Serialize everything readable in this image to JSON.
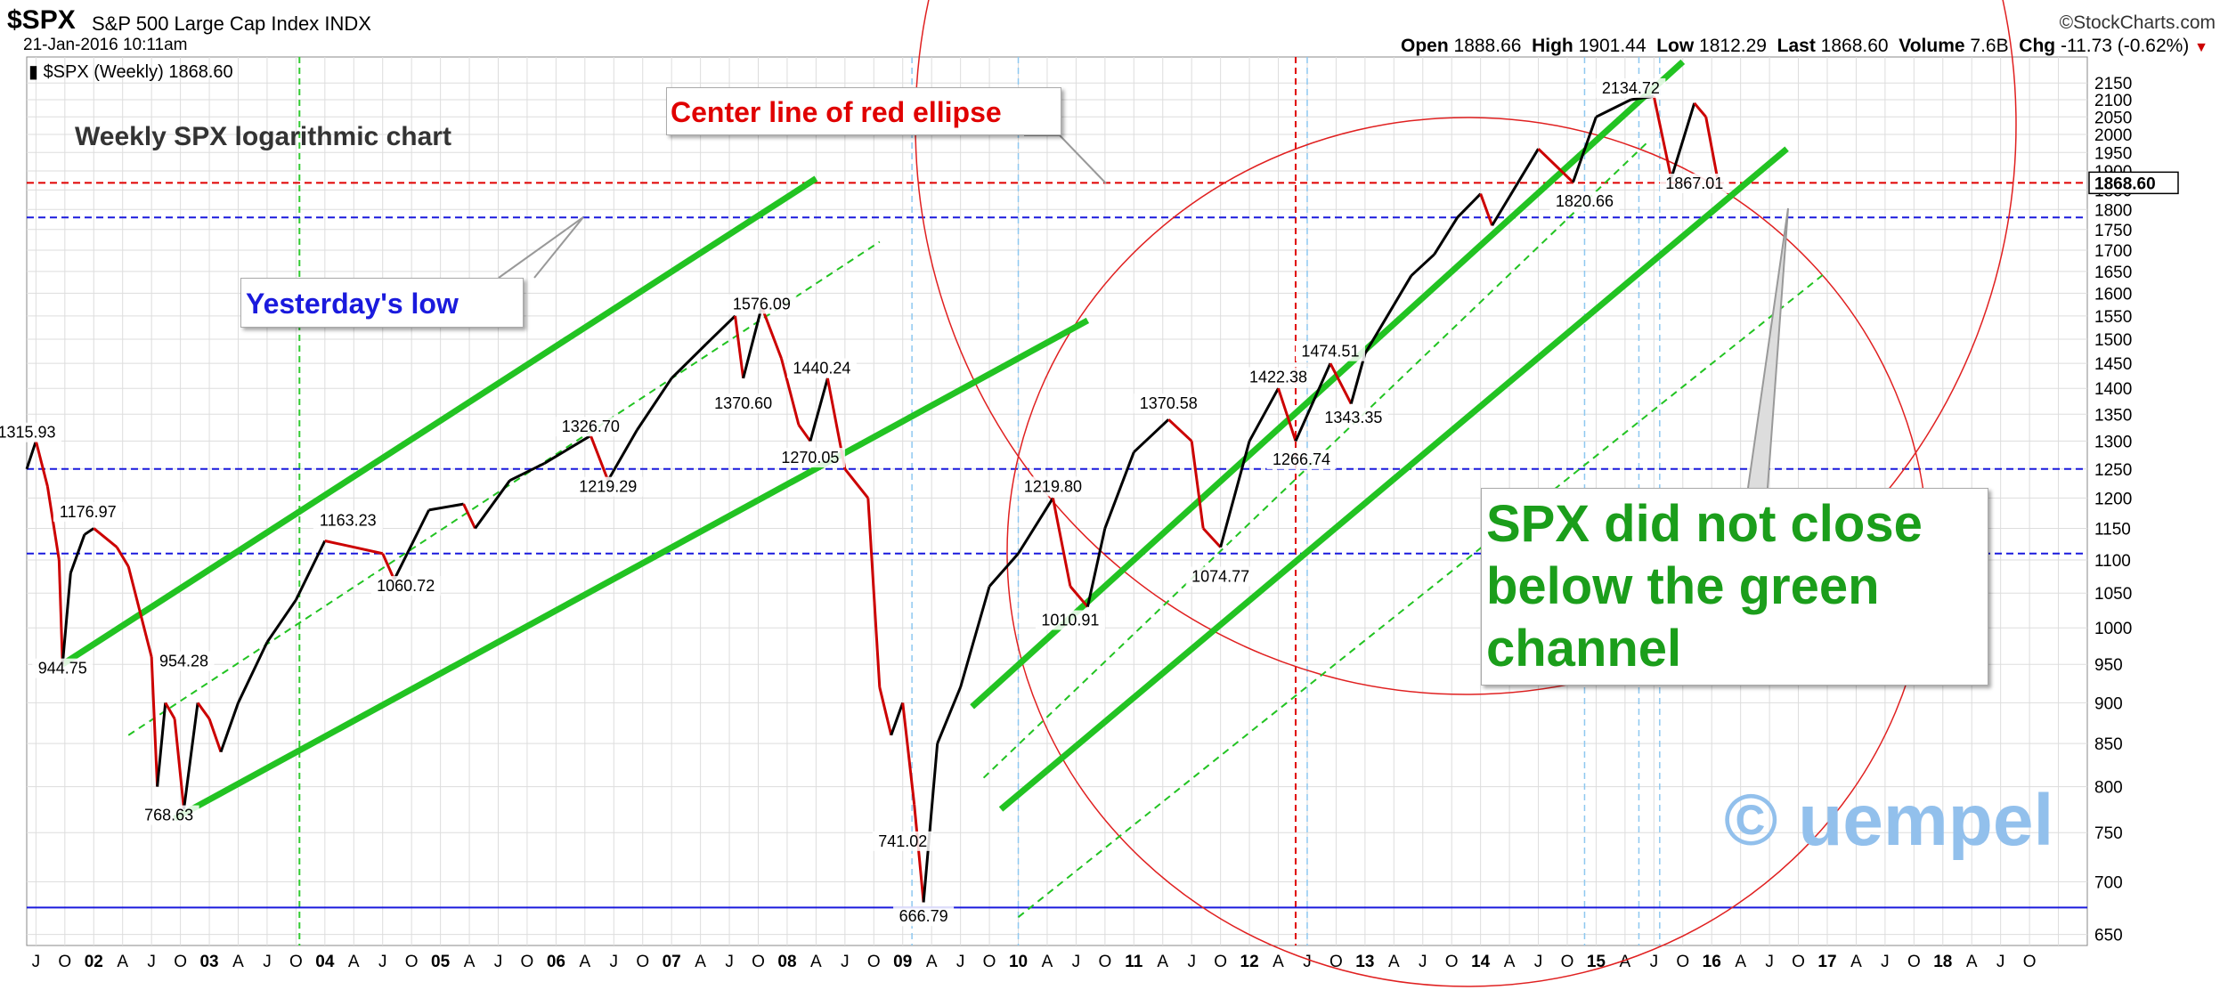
{
  "header": {
    "symbol": "$SPX",
    "name": "S&P 500 Large Cap Index",
    "exchange": "INDX",
    "date": "21-Jan-2016 10:11am",
    "source": "©StockCharts.com",
    "quote": {
      "open_label": "Open",
      "open": "1888.66",
      "high_label": "High",
      "high": "1901.44",
      "low_label": "Low",
      "low": "1812.29",
      "last_label": "Last",
      "last": "1868.60",
      "volume_label": "Volume",
      "volume": "7.6B",
      "chg_label": "Chg",
      "chg": "-11.73 (-0.62%)",
      "chg_arrow": "▼"
    }
  },
  "legend": "$SPX (Weekly) 1868.60",
  "title_note": "Weekly SPX logarithmic chart",
  "notes": {
    "ellipse": "Center line of red ellipse",
    "yesterday": "Yesterday's low",
    "spx_line1": "SPX did not close",
    "spx_line2": "below the green",
    "spx_line3": "channel"
  },
  "watermark": "© uempel",
  "colors": {
    "up": "#000000",
    "down": "#cc0000",
    "channel": "#22c322",
    "ellipse": "#e02020",
    "hline_red": "#e00000",
    "hline_blue": "#1a1add",
    "grid": "#dddddd"
  },
  "chart_data": {
    "type": "line",
    "scale": "log",
    "ylim": [
      640,
      2230
    ],
    "yticks": [
      650,
      700,
      750,
      800,
      850,
      900,
      950,
      1000,
      1050,
      1100,
      1150,
      1200,
      1250,
      1300,
      1350,
      1400,
      1450,
      1500,
      1550,
      1600,
      1650,
      1700,
      1750,
      1800,
      1850,
      1900,
      1950,
      2000,
      2050,
      2100,
      2150
    ],
    "xlim": [
      2001.42,
      2019.25
    ],
    "x_years": [
      "02",
      "03",
      "04",
      "05",
      "06",
      "07",
      "08",
      "09",
      "10",
      "11",
      "12",
      "13",
      "14",
      "15",
      "16",
      "17",
      "18"
    ],
    "x_month_letters": [
      "A",
      "J",
      "O"
    ],
    "last_value_tag": "1868.60",
    "series": [
      {
        "points": [
          [
            2001.42,
            1250
          ],
          [
            2001.5,
            1300
          ],
          [
            2001.6,
            1220
          ],
          [
            2001.7,
            1100
          ],
          [
            2001.73,
            950
          ],
          [
            2001.8,
            1080
          ],
          [
            2001.92,
            1140
          ],
          [
            2002.0,
            1150
          ],
          [
            2002.2,
            1120
          ],
          [
            2002.3,
            1090
          ],
          [
            2002.5,
            960
          ],
          [
            2002.55,
            800
          ],
          [
            2002.62,
            900
          ],
          [
            2002.7,
            880
          ],
          [
            2002.78,
            775
          ],
          [
            2002.9,
            900
          ],
          [
            2003.0,
            880
          ],
          [
            2003.1,
            840
          ],
          [
            2003.25,
            900
          ],
          [
            2003.5,
            980
          ],
          [
            2003.75,
            1040
          ],
          [
            2004.0,
            1130
          ],
          [
            2004.25,
            1120
          ],
          [
            2004.5,
            1110
          ],
          [
            2004.6,
            1070
          ],
          [
            2004.9,
            1180
          ],
          [
            2005.2,
            1190
          ],
          [
            2005.3,
            1150
          ],
          [
            2005.6,
            1230
          ],
          [
            2005.9,
            1260
          ],
          [
            2006.3,
            1310
          ],
          [
            2006.45,
            1230
          ],
          [
            2006.7,
            1320
          ],
          [
            2007.0,
            1420
          ],
          [
            2007.3,
            1490
          ],
          [
            2007.55,
            1550
          ],
          [
            2007.62,
            1420
          ],
          [
            2007.78,
            1570
          ],
          [
            2007.95,
            1460
          ],
          [
            2008.1,
            1330
          ],
          [
            2008.2,
            1300
          ],
          [
            2008.35,
            1420
          ],
          [
            2008.5,
            1250
          ],
          [
            2008.7,
            1200
          ],
          [
            2008.8,
            920
          ],
          [
            2008.9,
            860
          ],
          [
            2009.0,
            900
          ],
          [
            2009.1,
            780
          ],
          [
            2009.18,
            680
          ],
          [
            2009.3,
            850
          ],
          [
            2009.5,
            920
          ],
          [
            2009.75,
            1060
          ],
          [
            2010.0,
            1110
          ],
          [
            2010.3,
            1200
          ],
          [
            2010.45,
            1060
          ],
          [
            2010.6,
            1030
          ],
          [
            2010.75,
            1150
          ],
          [
            2011.0,
            1280
          ],
          [
            2011.3,
            1340
          ],
          [
            2011.5,
            1300
          ],
          [
            2011.6,
            1150
          ],
          [
            2011.75,
            1120
          ],
          [
            2012.0,
            1300
          ],
          [
            2012.25,
            1400
          ],
          [
            2012.4,
            1300
          ],
          [
            2012.7,
            1450
          ],
          [
            2012.88,
            1370
          ],
          [
            2013.0,
            1470
          ],
          [
            2013.4,
            1640
          ],
          [
            2013.6,
            1690
          ],
          [
            2013.8,
            1780
          ],
          [
            2014.0,
            1840
          ],
          [
            2014.1,
            1760
          ],
          [
            2014.5,
            1960
          ],
          [
            2014.8,
            1870
          ],
          [
            2015.0,
            2050
          ],
          [
            2015.3,
            2100
          ],
          [
            2015.5,
            2110
          ],
          [
            2015.65,
            1880
          ],
          [
            2015.85,
            2090
          ],
          [
            2015.95,
            2050
          ],
          [
            2016.05,
            1880
          ]
        ]
      }
    ],
    "labels": [
      {
        "x": 2001.42,
        "y": 1315.93,
        "text": "1315.93"
      },
      {
        "x": 2001.95,
        "y": 1176.97,
        "text": "1176.97"
      },
      {
        "x": 2001.73,
        "y": 944.75,
        "text": "944.75"
      },
      {
        "x": 2002.78,
        "y": 954.28,
        "text": "954.28"
      },
      {
        "x": 2002.65,
        "y": 768.63,
        "text": "768.63"
      },
      {
        "x": 2004.2,
        "y": 1163.23,
        "text": "1163.23"
      },
      {
        "x": 2004.7,
        "y": 1060.72,
        "text": "1060.72"
      },
      {
        "x": 2006.3,
        "y": 1326.7,
        "text": "1326.70"
      },
      {
        "x": 2006.45,
        "y": 1219.29,
        "text": "1219.29"
      },
      {
        "x": 2007.78,
        "y": 1576.09,
        "text": "1576.09"
      },
      {
        "x": 2007.62,
        "y": 1370.6,
        "text": "1370.60"
      },
      {
        "x": 2008.3,
        "y": 1440.24,
        "text": "1440.24"
      },
      {
        "x": 2008.2,
        "y": 1270.05,
        "text": "1270.05"
      },
      {
        "x": 2009.0,
        "y": 741.02,
        "text": "741.02"
      },
      {
        "x": 2009.18,
        "y": 666.79,
        "text": "666.79"
      },
      {
        "x": 2010.3,
        "y": 1219.8,
        "text": "1219.80"
      },
      {
        "x": 2010.45,
        "y": 1010.91,
        "text": "1010.91"
      },
      {
        "x": 2011.3,
        "y": 1370.58,
        "text": "1370.58"
      },
      {
        "x": 2011.75,
        "y": 1074.77,
        "text": "1074.77"
      },
      {
        "x": 2012.25,
        "y": 1422.38,
        "text": "1422.38"
      },
      {
        "x": 2012.45,
        "y": 1266.74,
        "text": "1266.74"
      },
      {
        "x": 2012.7,
        "y": 1474.51,
        "text": "1474.51"
      },
      {
        "x": 2012.9,
        "y": 1343.35,
        "text": "1343.35"
      },
      {
        "x": 2015.3,
        "y": 2134.72,
        "text": "2134.72"
      },
      {
        "x": 2014.9,
        "y": 1820.66,
        "text": "1820.66"
      },
      {
        "x": 2015.85,
        "y": 1867.01,
        "text": "1867.01"
      }
    ],
    "channels": [
      {
        "x1": 2001.73,
        "y1": 950,
        "x2": 2008.25,
        "y2": 1880,
        "style": "solid"
      },
      {
        "x1": 2002.3,
        "y1": 860,
        "x2": 2008.8,
        "y2": 1720,
        "style": "dashed"
      },
      {
        "x1": 2002.7,
        "y1": 765,
        "x2": 2010.6,
        "y2": 1540,
        "style": "solid"
      },
      {
        "x1": 2009.6,
        "y1": 895,
        "x2": 2015.75,
        "y2": 2215,
        "style": "solid"
      },
      {
        "x1": 2009.7,
        "y1": 810,
        "x2": 2015.45,
        "y2": 1980,
        "style": "dashed"
      },
      {
        "x1": 2009.85,
        "y1": 775,
        "x2": 2016.65,
        "y2": 1960,
        "style": "solid"
      },
      {
        "x1": 2010.0,
        "y1": 666,
        "x2": 2017.0,
        "y2": 1650,
        "style": "dashed"
      }
    ],
    "hlines": [
      {
        "y": 1868.6,
        "color": "red"
      },
      {
        "y": 1780,
        "color": "blue"
      },
      {
        "y": 1250,
        "color": "blue"
      },
      {
        "y": 1110,
        "color": "blue"
      },
      {
        "y": 675,
        "color": "blue-solid"
      }
    ],
    "vlines": [
      {
        "x": 2003.78,
        "color": "green"
      },
      {
        "x": 2012.4,
        "color": "red"
      },
      {
        "x": 2009.08,
        "color": "lightblue"
      },
      {
        "x": 2010.0,
        "color": "lightblue"
      },
      {
        "x": 2012.5,
        "color": "lightblue"
      },
      {
        "x": 2014.9,
        "color": "lightblue"
      },
      {
        "x": 2015.37,
        "color": "lightblue"
      },
      {
        "x": 2015.55,
        "color": "lightblue"
      }
    ]
  }
}
